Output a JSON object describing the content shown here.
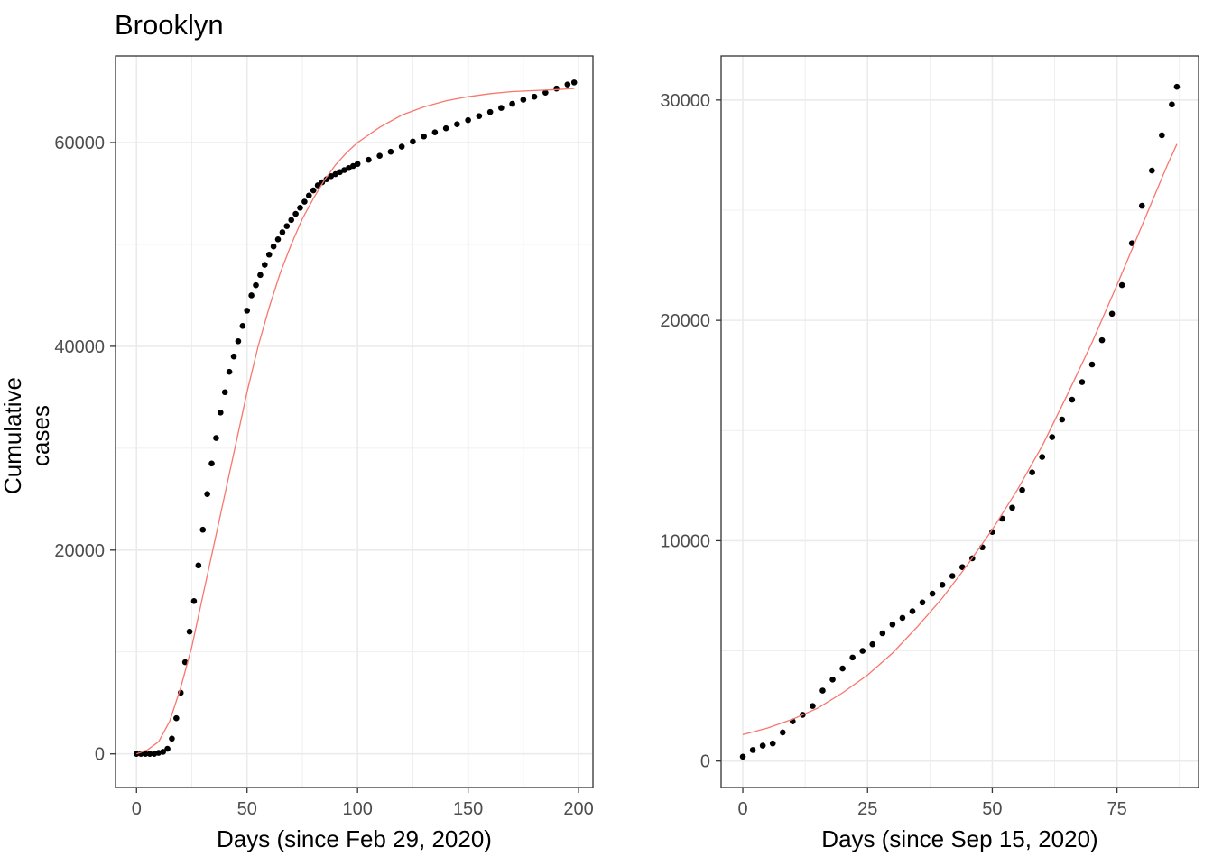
{
  "title": "Brooklyn",
  "ylabel": "Cumulative cases",
  "colors": {
    "points": "#000000",
    "fit": "#F8766D",
    "grid": "#EBEBEB",
    "frame": "#333333",
    "tick_text": "#4D4D4D"
  },
  "chart_data": [
    {
      "type": "scatter",
      "title": "Brooklyn",
      "xlabel": "Days (since Feb 29, 2020)",
      "ylabel": "Cumulative cases",
      "xlim": [
        -9.5,
        206.5
      ],
      "ylim": [
        -3300,
        68500
      ],
      "xticks": [
        0,
        50,
        100,
        150,
        200
      ],
      "yticks": [
        0,
        20000,
        40000,
        60000
      ],
      "grid": true,
      "legend": "none",
      "points": {
        "name": "",
        "x": [
          0,
          2,
          4,
          6,
          8,
          10,
          12,
          14,
          16,
          18,
          20,
          22,
          24,
          26,
          28,
          30,
          32,
          34,
          36,
          38,
          40,
          42,
          44,
          46,
          48,
          50,
          52,
          54,
          56,
          58,
          60,
          62,
          64,
          66,
          68,
          70,
          72,
          74,
          76,
          78,
          80,
          82,
          84,
          86,
          88,
          90,
          92,
          94,
          96,
          98,
          100,
          105,
          110,
          115,
          120,
          125,
          130,
          135,
          140,
          145,
          150,
          155,
          160,
          165,
          170,
          175,
          180,
          185,
          190,
          195,
          198
        ],
        "y": [
          0,
          0,
          0,
          0,
          0,
          100,
          200,
          500,
          1500,
          3500,
          6000,
          9000,
          12000,
          15000,
          18500,
          22000,
          25500,
          28500,
          31000,
          33500,
          35500,
          37500,
          39000,
          40500,
          42000,
          43500,
          45000,
          46000,
          47000,
          48000,
          49000,
          49800,
          50500,
          51200,
          51800,
          52400,
          53000,
          53600,
          54200,
          54800,
          55300,
          55800,
          56100,
          56400,
          56700,
          56900,
          57100,
          57300,
          57500,
          57700,
          57900,
          58300,
          58700,
          59100,
          59600,
          60100,
          60600,
          61000,
          61400,
          61800,
          62200,
          62600,
          63000,
          63400,
          63800,
          64200,
          64500,
          64900,
          65300,
          65700,
          65900
        ]
      },
      "fit": {
        "name": "",
        "x": [
          0,
          5,
          10,
          15,
          20,
          25,
          30,
          35,
          40,
          45,
          50,
          55,
          60,
          65,
          70,
          75,
          80,
          85,
          90,
          95,
          100,
          110,
          120,
          130,
          140,
          150,
          160,
          170,
          180,
          190,
          198
        ],
        "y": [
          0,
          400,
          1200,
          3200,
          6500,
          10500,
          15500,
          20500,
          25500,
          30500,
          35500,
          40000,
          43800,
          47200,
          50000,
          52500,
          54500,
          56300,
          57800,
          59000,
          60000,
          61500,
          62700,
          63500,
          64100,
          64500,
          64800,
          65000,
          65100,
          65200,
          65300
        ]
      }
    },
    {
      "type": "scatter",
      "title": "",
      "xlabel": "Days (since Sep 15, 2020)",
      "ylabel": "",
      "xlim": [
        -4.35,
        91.35
      ],
      "ylim": [
        -1200,
        32000
      ],
      "xticks": [
        0,
        25,
        50,
        75
      ],
      "yticks": [
        0,
        10000,
        20000,
        30000
      ],
      "grid": true,
      "legend": "none",
      "points": {
        "name": "",
        "x": [
          0,
          2,
          4,
          6,
          8,
          10,
          12,
          14,
          16,
          18,
          20,
          22,
          24,
          26,
          28,
          30,
          32,
          34,
          36,
          38,
          40,
          42,
          44,
          46,
          48,
          50,
          52,
          54,
          56,
          58,
          60,
          62,
          64,
          66,
          68,
          70,
          72,
          74,
          76,
          78,
          80,
          82,
          84,
          86,
          87
        ],
        "y": [
          200,
          500,
          700,
          800,
          1300,
          1800,
          2100,
          2500,
          3200,
          3700,
          4200,
          4700,
          5000,
          5300,
          5800,
          6200,
          6500,
          6800,
          7200,
          7600,
          8000,
          8400,
          8800,
          9200,
          9700,
          10400,
          11000,
          11500,
          12300,
          13100,
          13800,
          14700,
          15500,
          16400,
          17200,
          18000,
          19100,
          20300,
          21600,
          23500,
          25200,
          26800,
          28400,
          29800,
          30600
        ]
      },
      "fit": {
        "name": "",
        "x": [
          0,
          5,
          10,
          15,
          20,
          25,
          30,
          35,
          40,
          45,
          50,
          55,
          60,
          65,
          70,
          75,
          80,
          85,
          87
        ],
        "y": [
          1200,
          1500,
          1900,
          2400,
          3100,
          3900,
          4900,
          6100,
          7400,
          8900,
          10500,
          12300,
          14300,
          16600,
          19000,
          21600,
          24300,
          27000,
          28000
        ]
      }
    }
  ]
}
